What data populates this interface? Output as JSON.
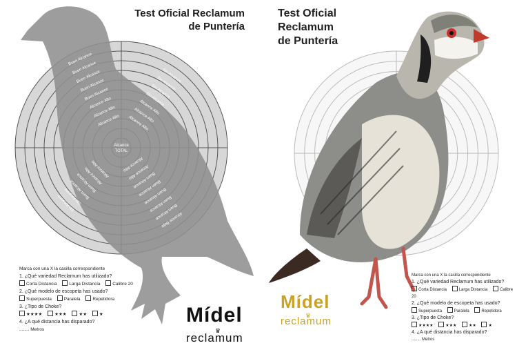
{
  "left": {
    "title_line1": "Test Oficial Reclamum",
    "title_line2": "de Puntería",
    "ring_labels_upper_left": [
      "Buen Alcance",
      "Buen Alcance",
      "Buen Alcance",
      "Buen Alcance",
      "Buen Alcance",
      "Alcance Alto",
      "Alcance Alto",
      "Alcance Alto"
    ],
    "ring_labels_upper_right": [
      "Sin Alcance",
      "Sin Alcance",
      "Sin Alcance",
      "Sin Alcance",
      "Alcance Alto",
      "Alcance Alto",
      "Alcance Alto"
    ],
    "ring_labels_lower": [
      "Alcance Alto",
      "Alcance Alto",
      "Buen Alcance",
      "Buen Alcance",
      "Buen Alcance",
      "Buen Alcance",
      "Buen Alcance",
      "Alcance Bajo"
    ],
    "ring_labels_lower_left": [
      "Alcance Alto",
      "Alcance Alto",
      "Buen Alcance",
      "Buen Alcance",
      "Sin Alcance",
      "Sin Alcance"
    ],
    "center_label_1": "Alcance",
    "center_label_2": "TOTAL",
    "brand": "Mídel",
    "brand_sub": "reclamum",
    "colors": {
      "bird": "#8f8f8f",
      "rings": "#555555"
    }
  },
  "right": {
    "title_line1": "Test Oficial",
    "title_line2": "Reclamum",
    "title_line3": "de Puntería",
    "brand": "Mídel",
    "brand_sub": "reclamum",
    "colors": {
      "brand_gold": "#c9a227",
      "rings": "#bbbbbb"
    }
  },
  "form": {
    "instruction": "Marca con una X la casilla correspondiente",
    "q1": "1. ¿Qué variedad Reclamum has utilizado?",
    "q1_options": [
      "Corta Distancia",
      "Larga Distancia",
      "Calibre 20"
    ],
    "q2": "2. ¿Qué modelo de escopeta has usado?",
    "q2_options": [
      "Superpuesta",
      "Paralela",
      "Repetidora"
    ],
    "q3": "3. ¿Tipo de Choke?",
    "q3_options": [
      "★★★★",
      "★★★",
      "★★",
      "★"
    ],
    "q4": "4. ¿A qué distancia has disparado?",
    "q4_suffix": "........ Metros"
  }
}
